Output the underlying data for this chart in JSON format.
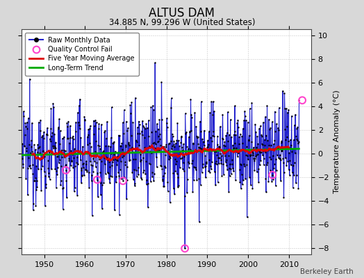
{
  "title": "ALTUS DAM",
  "subtitle": "34.885 N, 99.296 W (United States)",
  "ylabel": "Temperature Anomaly (°C)",
  "watermark": "Berkeley Earth",
  "xlim": [
    1944.5,
    2015.5
  ],
  "ylim": [
    -8.5,
    10.5
  ],
  "yticks": [
    -8,
    -6,
    -4,
    -2,
    0,
    2,
    4,
    6,
    8,
    10
  ],
  "xticks": [
    1950,
    1960,
    1970,
    1980,
    1990,
    2000,
    2010
  ],
  "seed": 12345,
  "n_months": 816,
  "start_year": 1944.583,
  "raw_color": "#2222cc",
  "fill_color": "#8888ee",
  "fill_alpha": 0.35,
  "dot_color": "#000000",
  "dot_size": 3,
  "moving_avg_color": "#dd0000",
  "trend_color": "#00aa00",
  "qc_fail_color": "#ff44cc",
  "background_color": "#d8d8d8",
  "plot_bg_color": "#ffffff",
  "legend_entries": [
    "Raw Monthly Data",
    "Quality Control Fail",
    "Five Year Moving Average",
    "Long-Term Trend"
  ]
}
